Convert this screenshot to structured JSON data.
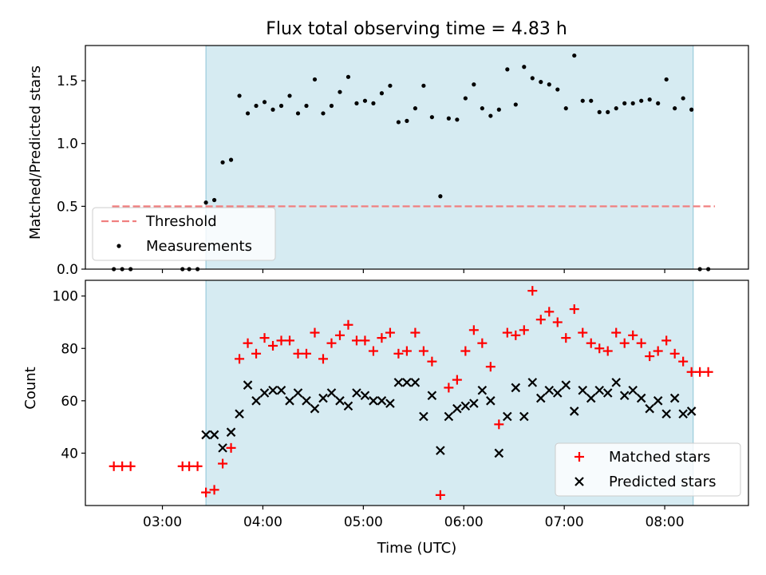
{
  "chart_data": [
    {
      "type": "scatter",
      "title": "Flux total observing time = 4.83 h",
      "ylabel": "Matched/Predicted stars",
      "xlabel": "",
      "xlim": [
        "02:14",
        "08:50"
      ],
      "ylim": [
        0,
        1.78
      ],
      "yticks": [
        0.0,
        0.5,
        1.0,
        1.5
      ],
      "ytick_labels": [
        "0.0",
        "0.5",
        "1.0",
        "1.5"
      ],
      "shaded_span": [
        "03:26",
        "08:17"
      ],
      "grid": false,
      "legend": "lower-left",
      "series": [
        {
          "name": "Threshold",
          "kind": "dashed-line",
          "color": "#f08080",
          "x": [
            "02:30",
            "08:30"
          ],
          "y": [
            0.5,
            0.5
          ]
        },
        {
          "name": "Measurements",
          "kind": "dot",
          "color": "#000000",
          "x": [
            "02:31",
            "02:36",
            "02:41",
            "03:12",
            "03:16",
            "03:21",
            "03:26",
            "03:31",
            "03:36",
            "03:41",
            "03:46",
            "03:51",
            "03:56",
            "04:01",
            "04:06",
            "04:11",
            "04:16",
            "04:21",
            "04:26",
            "04:31",
            "04:36",
            "04:41",
            "04:46",
            "04:51",
            "04:56",
            "05:01",
            "05:06",
            "05:11",
            "05:16",
            "05:21",
            "05:26",
            "05:31",
            "05:36",
            "05:41",
            "05:46",
            "05:51",
            "05:56",
            "06:01",
            "06:06",
            "06:11",
            "06:16",
            "06:21",
            "06:26",
            "06:31",
            "06:36",
            "06:41",
            "06:46",
            "06:51",
            "06:56",
            "07:01",
            "07:06",
            "07:11",
            "07:16",
            "07:21",
            "07:26",
            "07:31",
            "07:36",
            "07:41",
            "07:46",
            "07:51",
            "07:56",
            "08:01",
            "08:06",
            "08:11",
            "08:16",
            "08:21",
            "08:26"
          ],
          "y": [
            0.0,
            0.0,
            0.0,
            0.0,
            0.0,
            0.0,
            0.53,
            0.55,
            0.85,
            0.87,
            1.38,
            1.24,
            1.3,
            1.33,
            1.27,
            1.3,
            1.38,
            1.24,
            1.3,
            1.51,
            1.24,
            1.3,
            1.41,
            1.53,
            1.32,
            1.34,
            1.32,
            1.4,
            1.46,
            1.17,
            1.18,
            1.28,
            1.46,
            1.21,
            0.58,
            1.2,
            1.19,
            1.36,
            1.47,
            1.28,
            1.22,
            1.27,
            1.59,
            1.31,
            1.61,
            1.52,
            1.49,
            1.47,
            1.43,
            1.28,
            1.7,
            1.34,
            1.34,
            1.25,
            1.25,
            1.28,
            1.32,
            1.32,
            1.34,
            1.35,
            1.32,
            1.51,
            1.28,
            1.36,
            1.27,
            0.0,
            0.0
          ]
        }
      ]
    },
    {
      "type": "scatter",
      "title": "",
      "ylabel": "Count",
      "xlabel": "Time (UTC)",
      "xlim": [
        "02:14",
        "08:50"
      ],
      "ylim": [
        20,
        106
      ],
      "yticks": [
        40,
        60,
        80,
        100
      ],
      "ytick_labels": [
        "40",
        "60",
        "80",
        "100"
      ],
      "xticks": [
        "03:00",
        "04:00",
        "05:00",
        "06:00",
        "07:00",
        "08:00"
      ],
      "shaded_span": [
        "03:26",
        "08:17"
      ],
      "grid": false,
      "legend": "lower-right",
      "series": [
        {
          "name": "Matched stars",
          "kind": "plus",
          "color": "#ff0000",
          "x": [
            "02:31",
            "02:36",
            "02:41",
            "03:12",
            "03:16",
            "03:21",
            "03:26",
            "03:31",
            "03:36",
            "03:41",
            "03:46",
            "03:51",
            "03:56",
            "04:01",
            "04:06",
            "04:11",
            "04:16",
            "04:21",
            "04:26",
            "04:31",
            "04:36",
            "04:41",
            "04:46",
            "04:51",
            "04:56",
            "05:01",
            "05:06",
            "05:11",
            "05:16",
            "05:21",
            "05:26",
            "05:31",
            "05:36",
            "05:41",
            "05:46",
            "05:51",
            "05:56",
            "06:01",
            "06:06",
            "06:11",
            "06:16",
            "06:21",
            "06:26",
            "06:31",
            "06:36",
            "06:41",
            "06:46",
            "06:51",
            "06:56",
            "07:01",
            "07:06",
            "07:11",
            "07:16",
            "07:21",
            "07:26",
            "07:31",
            "07:36",
            "07:41",
            "07:46",
            "07:51",
            "07:56",
            "08:01",
            "08:06",
            "08:11",
            "08:16",
            "08:21",
            "08:26"
          ],
          "y": [
            35,
            35,
            35,
            35,
            35,
            35,
            25,
            26,
            36,
            42,
            76,
            82,
            78,
            84,
            81,
            83,
            83,
            78,
            78,
            86,
            76,
            82,
            85,
            89,
            83,
            83,
            79,
            84,
            86,
            78,
            79,
            86,
            79,
            75,
            24,
            65,
            68,
            79,
            87,
            82,
            73,
            51,
            86,
            85,
            87,
            102,
            91,
            94,
            90,
            84,
            95,
            86,
            82,
            80,
            79,
            86,
            82,
            85,
            82,
            77,
            79,
            83,
            78,
            75,
            71,
            71,
            71
          ]
        },
        {
          "name": "Predicted stars",
          "kind": "x",
          "color": "#000000",
          "x": [
            "03:26",
            "03:31",
            "03:36",
            "03:41",
            "03:46",
            "03:51",
            "03:56",
            "04:01",
            "04:06",
            "04:11",
            "04:16",
            "04:21",
            "04:26",
            "04:31",
            "04:36",
            "04:41",
            "04:46",
            "04:51",
            "04:56",
            "05:01",
            "05:06",
            "05:11",
            "05:16",
            "05:21",
            "05:26",
            "05:31",
            "05:36",
            "05:41",
            "05:46",
            "05:51",
            "05:56",
            "06:01",
            "06:06",
            "06:11",
            "06:16",
            "06:21",
            "06:26",
            "06:31",
            "06:36",
            "06:41",
            "06:46",
            "06:51",
            "06:56",
            "07:01",
            "07:06",
            "07:11",
            "07:16",
            "07:21",
            "07:26",
            "07:31",
            "07:36",
            "07:41",
            "07:46",
            "07:51",
            "07:56",
            "08:01",
            "08:06",
            "08:11",
            "08:16"
          ],
          "y": [
            47,
            47,
            42,
            48,
            55,
            66,
            60,
            63,
            64,
            64,
            60,
            63,
            60,
            57,
            61,
            63,
            60,
            58,
            63,
            62,
            60,
            60,
            59,
            67,
            67,
            67,
            54,
            62,
            41,
            54,
            57,
            58,
            59,
            64,
            60,
            40,
            54,
            65,
            54,
            67,
            61,
            64,
            63,
            66,
            56,
            64,
            61,
            64,
            63,
            67,
            62,
            64,
            61,
            57,
            60,
            55,
            61,
            55,
            56
          ]
        }
      ]
    }
  ]
}
